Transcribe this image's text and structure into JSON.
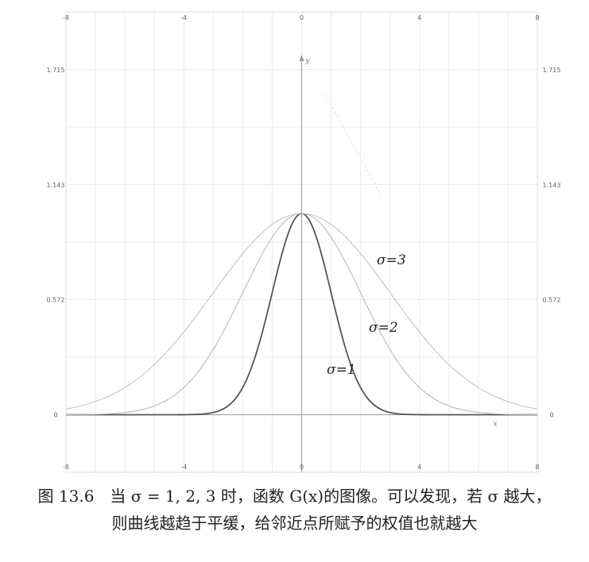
{
  "caption": {
    "line1": "图 13.6　当 σ = 1, 2, 3 时，函数 G(x)的图像。可以发现，若 σ 越大，",
    "line2": "则曲线越趋于平缓，给邻近点所赋予的权值也就越大"
  },
  "chart_data": {
    "type": "line",
    "xlim": [
      -8,
      8
    ],
    "ylim": [
      -0.286,
      2.002
    ],
    "x_ticks": [
      "-8",
      "-4",
      "0",
      "4",
      "8"
    ],
    "y_ticks": [
      "0",
      "0.572",
      "1.143",
      "1.715"
    ],
    "x_axis_label": "x",
    "y_axis_label": "y",
    "grid": true,
    "series": [
      {
        "name": "σ=1",
        "x": [
          -8,
          -4,
          -3,
          -2,
          -1.5,
          -1,
          -0.5,
          0,
          0.5,
          1,
          1.5,
          2,
          3,
          4,
          8
        ],
        "y": [
          0,
          0.0003,
          0.011,
          0.135,
          0.325,
          0.607,
          0.882,
          1.0,
          0.882,
          0.607,
          0.325,
          0.135,
          0.011,
          0.0003,
          0
        ]
      },
      {
        "name": "σ=2",
        "x": [
          -8,
          -6,
          -4,
          -3,
          -2,
          -1,
          0,
          1,
          2,
          3,
          4,
          6,
          8
        ],
        "y": [
          0.0003,
          0.011,
          0.135,
          0.325,
          0.607,
          0.882,
          1.0,
          0.882,
          0.607,
          0.325,
          0.135,
          0.011,
          0.0003
        ]
      },
      {
        "name": "σ=3",
        "x": [
          -8,
          -6,
          -4,
          -3,
          -2,
          -1,
          0,
          1,
          2,
          3,
          4,
          6,
          8
        ],
        "y": [
          0.029,
          0.135,
          0.411,
          0.607,
          0.801,
          0.946,
          1.0,
          0.946,
          0.801,
          0.607,
          0.411,
          0.135,
          0.029
        ]
      }
    ],
    "labels": [
      "σ=3",
      "σ=2",
      "σ=1"
    ],
    "colors": {
      "s1": "#555555",
      "s2": "#b8b8b8",
      "s3": "#c4c4c4",
      "grid": "#ececec",
      "axis": "#999999"
    }
  }
}
